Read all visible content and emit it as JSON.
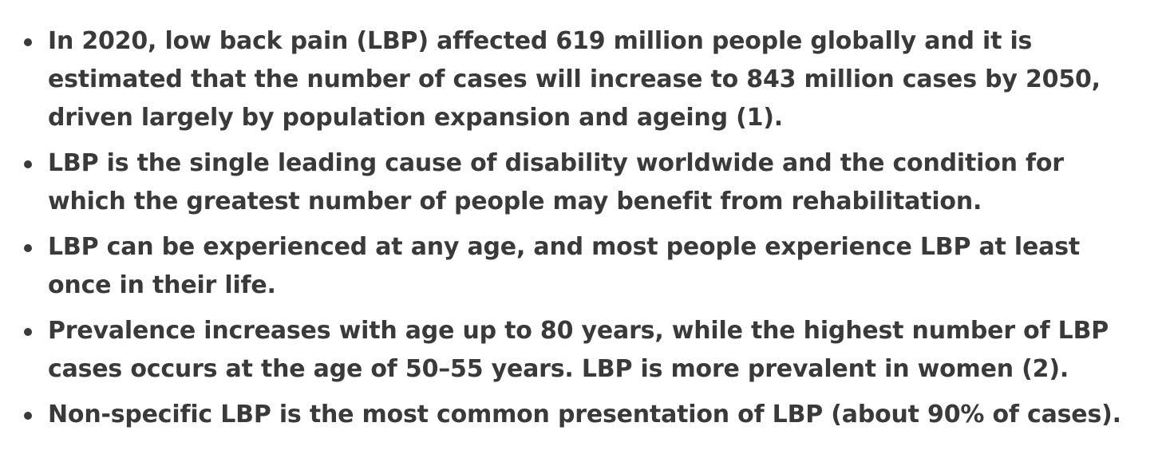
{
  "facts": [
    "In 2020, low back pain (LBP) affected 619 million people globally and it is estimated that the number of cases will increase to 843 million cases by 2050, driven largely by population expansion and ageing (1).",
    "LBP is the single leading cause of disability worldwide and the condition for which the greatest number of people may benefit from rehabilitation.",
    "LBP can be experienced at any age, and most people experience LBP at least once in their life.",
    "Prevalence increases with age up to 80 years, while the highest number of LBP cases occurs at the age of 50–55 years. LBP is more prevalent in women (2).",
    "Non-specific LBP is the most common presentation of LBP (about 90% of cases)."
  ],
  "colors": {
    "text": "#3a3a3a",
    "background": "#ffffff"
  }
}
